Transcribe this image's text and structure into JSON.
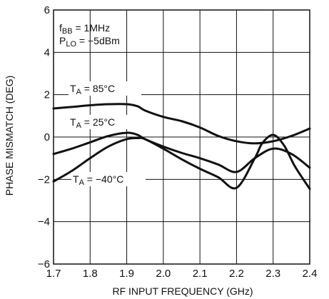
{
  "chart_data": {
    "type": "line",
    "title": "",
    "xlabel": "RF INPUT FREQUENCY (GHz)",
    "ylabel": "PHASE MISMATCH (DEG)",
    "xlim": [
      1.7,
      2.4
    ],
    "ylim": [
      -6,
      6
    ],
    "x_ticks": [
      1.7,
      1.8,
      1.9,
      2.0,
      2.1,
      2.2,
      2.3,
      2.4
    ],
    "x_tick_labels": [
      "1.7",
      "1.8",
      "1.9",
      "2.0",
      "2.1",
      "2.2",
      "2.3",
      "2.4"
    ],
    "y_ticks": [
      -6,
      -4,
      -2,
      0,
      2,
      4,
      6
    ],
    "y_tick_labels": [
      "−6",
      "−4",
      "−2",
      "0",
      "2",
      "4",
      "6"
    ],
    "grid": true,
    "legend": "none",
    "annotations": {
      "cond1": {
        "base": "f",
        "sub": "BB",
        "rest": " = 1MHz"
      },
      "cond2": {
        "base": "P",
        "sub": "LO",
        "rest": " = −5dBm"
      }
    },
    "series": [
      {
        "base": "T",
        "sub": "A",
        "rest": " = 85°C",
        "x": [
          1.7,
          1.75,
          1.8,
          1.85,
          1.9,
          1.93,
          1.95,
          2.0,
          2.05,
          2.1,
          2.15,
          2.2,
          2.25,
          2.3,
          2.35,
          2.4
        ],
        "y": [
          1.35,
          1.42,
          1.5,
          1.55,
          1.55,
          1.45,
          1.25,
          0.95,
          0.75,
          0.45,
          0.05,
          -0.2,
          -0.3,
          -0.2,
          0.05,
          0.4
        ]
      },
      {
        "base": "T",
        "sub": "A",
        "rest": " = 25°C",
        "x": [
          1.7,
          1.75,
          1.8,
          1.85,
          1.9,
          1.93,
          1.95,
          2.0,
          2.05,
          2.1,
          2.15,
          2.2,
          2.25,
          2.3,
          2.35,
          2.4
        ],
        "y": [
          -0.8,
          -0.55,
          -0.25,
          0.05,
          0.2,
          0.1,
          -0.1,
          -0.45,
          -0.75,
          -1.0,
          -1.3,
          -1.65,
          -1.0,
          -0.55,
          -0.8,
          -1.45
        ]
      },
      {
        "base": "T",
        "sub": "A",
        "rest": " = −40°C",
        "x": [
          1.7,
          1.75,
          1.8,
          1.85,
          1.9,
          1.93,
          1.95,
          2.0,
          2.05,
          2.1,
          2.15,
          2.2,
          2.25,
          2.27,
          2.3,
          2.33,
          2.36,
          2.4
        ],
        "y": [
          -2.1,
          -1.6,
          -1.0,
          -0.45,
          -0.1,
          -0.05,
          -0.1,
          -0.55,
          -1.05,
          -1.5,
          -1.9,
          -2.4,
          -1.0,
          -0.3,
          0.1,
          -0.4,
          -1.4,
          -2.45
        ]
      }
    ]
  }
}
